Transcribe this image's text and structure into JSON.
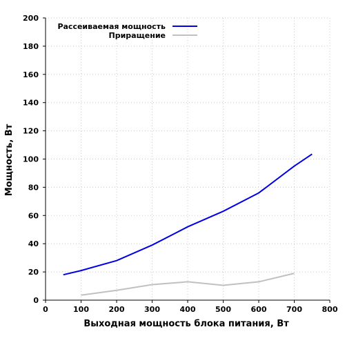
{
  "chart_data": {
    "type": "line",
    "xlabel": "Выходная мощность блока питания, Вт",
    "ylabel": "Мощность, Вт",
    "xlim": [
      0,
      800
    ],
    "ylim": [
      0,
      200
    ],
    "x_ticks": [
      "0",
      "100",
      "200",
      "300",
      "400",
      "500",
      "600",
      "700",
      "800"
    ],
    "y_ticks": [
      "0",
      "20",
      "40",
      "60",
      "80",
      "100",
      "120",
      "140",
      "160",
      "180",
      "200"
    ],
    "grid": true,
    "legend_position": "top-left",
    "series": [
      {
        "name": "Рассеиваемая мощность",
        "color": "#0000e6",
        "x": [
          50,
          100,
          200,
          300,
          400,
          500,
          600,
          700,
          750
        ],
        "y": [
          18,
          21,
          28,
          39,
          52,
          63,
          76,
          95,
          103.5
        ]
      },
      {
        "name": "Приращение",
        "color": "#c0c0c0",
        "x": [
          100,
          200,
          300,
          400,
          500,
          600,
          700
        ],
        "y": [
          3.5,
          7,
          11,
          13,
          10.5,
          13,
          19
        ]
      }
    ]
  }
}
